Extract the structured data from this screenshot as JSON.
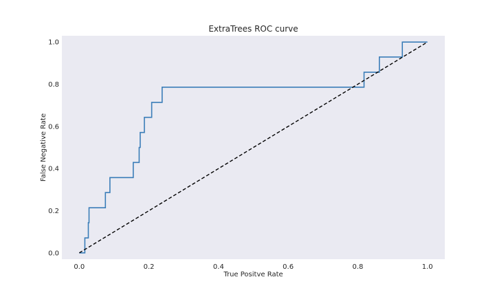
{
  "chart_data": {
    "type": "line",
    "title": "ExtraTrees ROC curve",
    "xlabel": "True Positve Rate",
    "ylabel": "False Negative Rate",
    "xlim": [
      -0.05,
      1.05
    ],
    "ylim": [
      -0.03,
      1.03
    ],
    "grid": false,
    "legend": "none",
    "x_ticks": [
      "0.0",
      "0.2",
      "0.4",
      "0.6",
      "0.8",
      "1.0"
    ],
    "y_ticks": [
      "0.0",
      "0.2",
      "0.4",
      "0.6",
      "0.8",
      "1.0"
    ],
    "colors": {
      "background": "#EAEAF2",
      "roc_line": "#3A7DB8",
      "diagonal": "#000000"
    },
    "series": [
      {
        "style": "solid",
        "x": [
          0.0,
          0.016,
          0.016,
          0.026,
          0.026,
          0.028,
          0.028,
          0.03,
          0.03,
          0.075,
          0.075,
          0.088,
          0.088,
          0.155,
          0.155,
          0.172,
          0.172,
          0.175,
          0.175,
          0.187,
          0.187,
          0.208,
          0.208,
          0.238,
          0.238,
          0.818,
          0.818,
          0.862,
          0.862,
          0.928,
          0.928,
          1.0
        ],
        "y": [
          0.0,
          0.0,
          0.071,
          0.071,
          0.143,
          0.143,
          0.214,
          0.214,
          0.214,
          0.214,
          0.286,
          0.286,
          0.357,
          0.357,
          0.429,
          0.429,
          0.5,
          0.5,
          0.571,
          0.571,
          0.643,
          0.643,
          0.714,
          0.714,
          0.786,
          0.786,
          0.857,
          0.857,
          0.929,
          0.929,
          1.0,
          1.0
        ]
      },
      {
        "style": "dashed",
        "x": [
          0.0,
          1.0
        ],
        "y": [
          0.0,
          1.0
        ]
      }
    ]
  }
}
